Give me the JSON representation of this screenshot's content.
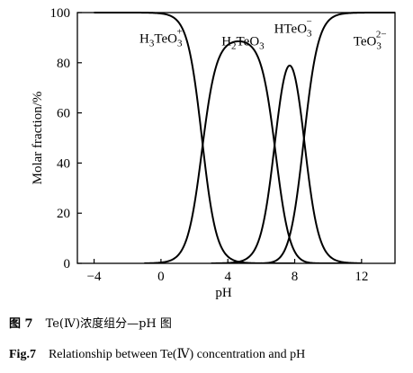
{
  "chart_data": {
    "type": "line",
    "xlabel": "pH",
    "ylabel": "Molar fraction/%",
    "xlim": [
      -5,
      14
    ],
    "ylim": [
      0,
      100
    ],
    "xticks": [
      -4,
      0,
      4,
      8,
      12
    ],
    "yticks": [
      0,
      20,
      40,
      60,
      80,
      100
    ],
    "grid": false,
    "legend": "none",
    "species": {
      "pK1": 2.45,
      "pK2": 6.85,
      "pK3": 8.55
    },
    "series": [
      {
        "label_parts": {
          "base": "H",
          "s1": "3",
          "mid": "TeO",
          "sub": "3",
          "sup": "+"
        },
        "label_x": 0.0,
        "label_y": 88,
        "values_x": [
          -4,
          -2,
          0,
          1,
          2,
          2.45,
          3,
          4,
          5,
          6,
          8
        ],
        "values_y": [
          100,
          100,
          99.6,
          96.6,
          73.8,
          50.0,
          21.6,
          2.7,
          0.3,
          0.0,
          0.0
        ]
      },
      {
        "label_parts": {
          "base": "H",
          "s1": "2",
          "mid": "TeO",
          "sub": "3",
          "sup": ""
        },
        "label_x": 4.9,
        "label_y": 87,
        "values_x": [
          -1,
          0,
          1,
          2,
          3,
          4,
          4.65,
          5,
          6,
          7,
          8,
          9,
          10,
          11
        ],
        "values_y": [
          0.0,
          0.4,
          3.4,
          25.8,
          74.6,
          94.4,
          80.7,
          97.0,
          86.6,
          41.7,
          6.8,
          0.3,
          0.0,
          0.0
        ]
      },
      {
        "label_parts": {
          "base": "H",
          "s1": "",
          "mid": "TeO",
          "sub": "3",
          "sup": "−"
        },
        "label_x": 7.9,
        "label_y": 92,
        "values_x": [
          3,
          4,
          5,
          6,
          7,
          7.7,
          8,
          9,
          10,
          11,
          12
        ],
        "values_y": [
          0.0,
          0.3,
          1.4,
          12.2,
          55.6,
          86.0,
          76.4,
          25.0,
          3.3,
          0.3,
          0.0
        ]
      },
      {
        "label_parts": {
          "base": "",
          "s1": "",
          "mid": "TeO",
          "sub": "3",
          "sup": "2−"
        },
        "label_x": 12.5,
        "label_y": 87,
        "values_x": [
          6,
          7,
          8,
          8.55,
          9,
          10,
          11,
          12,
          13,
          14
        ],
        "values_y": [
          0.0,
          2.5,
          22.0,
          50.0,
          73.8,
          96.6,
          99.6,
          100,
          100,
          100
        ]
      }
    ]
  },
  "caption": {
    "cn_label": "图 7",
    "cn_text": "Te(Ⅳ)浓度组分—pH 图",
    "en_label": "Fig.7",
    "en_text": "Relationship between Te(Ⅳ) concentration and pH"
  }
}
